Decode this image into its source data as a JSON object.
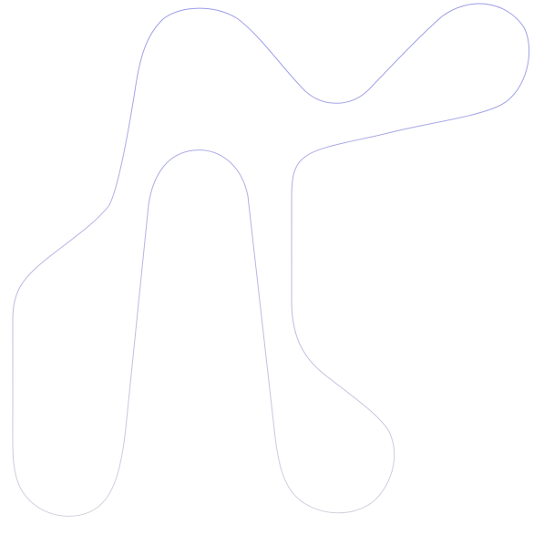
{
  "shape": {
    "type": "smooth outline",
    "stroke_color_start": "#9a9ae8",
    "stroke_color_end": "#d4d4dc",
    "fill": "none",
    "stroke_width": 1
  }
}
